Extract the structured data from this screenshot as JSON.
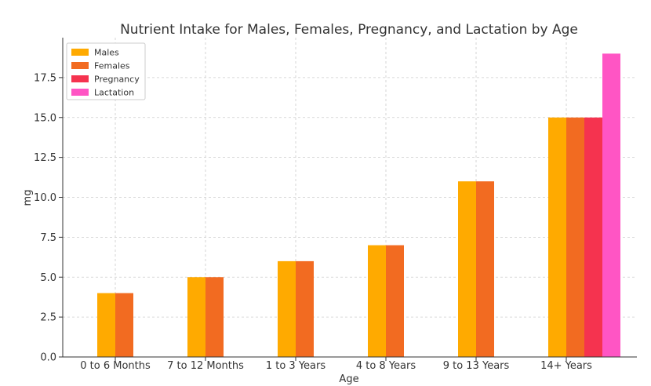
{
  "chart_data": {
    "type": "bar",
    "title": "Nutrient Intake for Males, Females, Pregnancy, and Lactation by Age",
    "xlabel": "Age",
    "ylabel": "mg",
    "ylim": [
      0,
      20
    ],
    "yticks": [
      0.0,
      2.5,
      5.0,
      7.5,
      10.0,
      12.5,
      15.0,
      17.5
    ],
    "ytick_labels": [
      "0.0",
      "2.5",
      "5.0",
      "7.5",
      "10.0",
      "12.5",
      "15.0",
      "17.5"
    ],
    "grid": true,
    "legend_position": "top-left",
    "categories": [
      "0 to 6 Months",
      "7 to 12 Months",
      "1 to 3 Years",
      "4 to 8 Years",
      "9 to 13 Years",
      "14+ Years"
    ],
    "series": [
      {
        "name": "Males",
        "color": "#FFAA00",
        "values": [
          4,
          5,
          6,
          7,
          11,
          15
        ]
      },
      {
        "name": "Females",
        "color": "#F26B21",
        "values": [
          4,
          5,
          6,
          7,
          11,
          15
        ]
      },
      {
        "name": "Pregnancy",
        "color": "#F5334F",
        "values": [
          null,
          null,
          null,
          null,
          null,
          15
        ]
      },
      {
        "name": "Lactation",
        "color": "#FF55C4",
        "values": [
          null,
          null,
          null,
          null,
          null,
          19
        ]
      }
    ]
  }
}
